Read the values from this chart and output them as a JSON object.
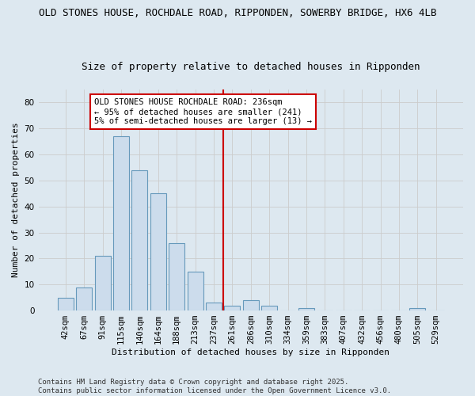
{
  "title_line1": "OLD STONES HOUSE, ROCHDALE ROAD, RIPPONDEN, SOWERBY BRIDGE, HX6 4LB",
  "title_line2": "Size of property relative to detached houses in Ripponden",
  "xlabel": "Distribution of detached houses by size in Ripponden",
  "ylabel": "Number of detached properties",
  "categories": [
    "42sqm",
    "67sqm",
    "91sqm",
    "115sqm",
    "140sqm",
    "164sqm",
    "188sqm",
    "213sqm",
    "237sqm",
    "261sqm",
    "286sqm",
    "310sqm",
    "334sqm",
    "359sqm",
    "383sqm",
    "407sqm",
    "432sqm",
    "456sqm",
    "480sqm",
    "505sqm",
    "529sqm"
  ],
  "values": [
    5,
    9,
    21,
    67,
    54,
    45,
    26,
    15,
    3,
    2,
    4,
    2,
    0,
    1,
    0,
    0,
    0,
    0,
    0,
    1,
    0
  ],
  "bar_color": "#ccdcec",
  "bar_edge_color": "#6699bb",
  "vline_x_index": 8.5,
  "vline_color": "#cc0000",
  "annotation_text": "OLD STONES HOUSE ROCHDALE ROAD: 236sqm\n← 95% of detached houses are smaller (241)\n5% of semi-detached houses are larger (13) →",
  "annotation_box_facecolor": "#ffffff",
  "annotation_box_edgecolor": "#cc0000",
  "ylim": [
    0,
    85
  ],
  "yticks": [
    0,
    10,
    20,
    30,
    40,
    50,
    60,
    70,
    80
  ],
  "grid_color": "#cccccc",
  "plot_bg_color": "#dde8f0",
  "fig_bg_color": "#dde8f0",
  "footer_text": "Contains HM Land Registry data © Crown copyright and database right 2025.\nContains public sector information licensed under the Open Government Licence v3.0.",
  "title_fontsize": 9,
  "subtitle_fontsize": 9,
  "axis_label_fontsize": 8,
  "tick_fontsize": 7.5,
  "annotation_fontsize": 7.5,
  "footer_fontsize": 6.5
}
